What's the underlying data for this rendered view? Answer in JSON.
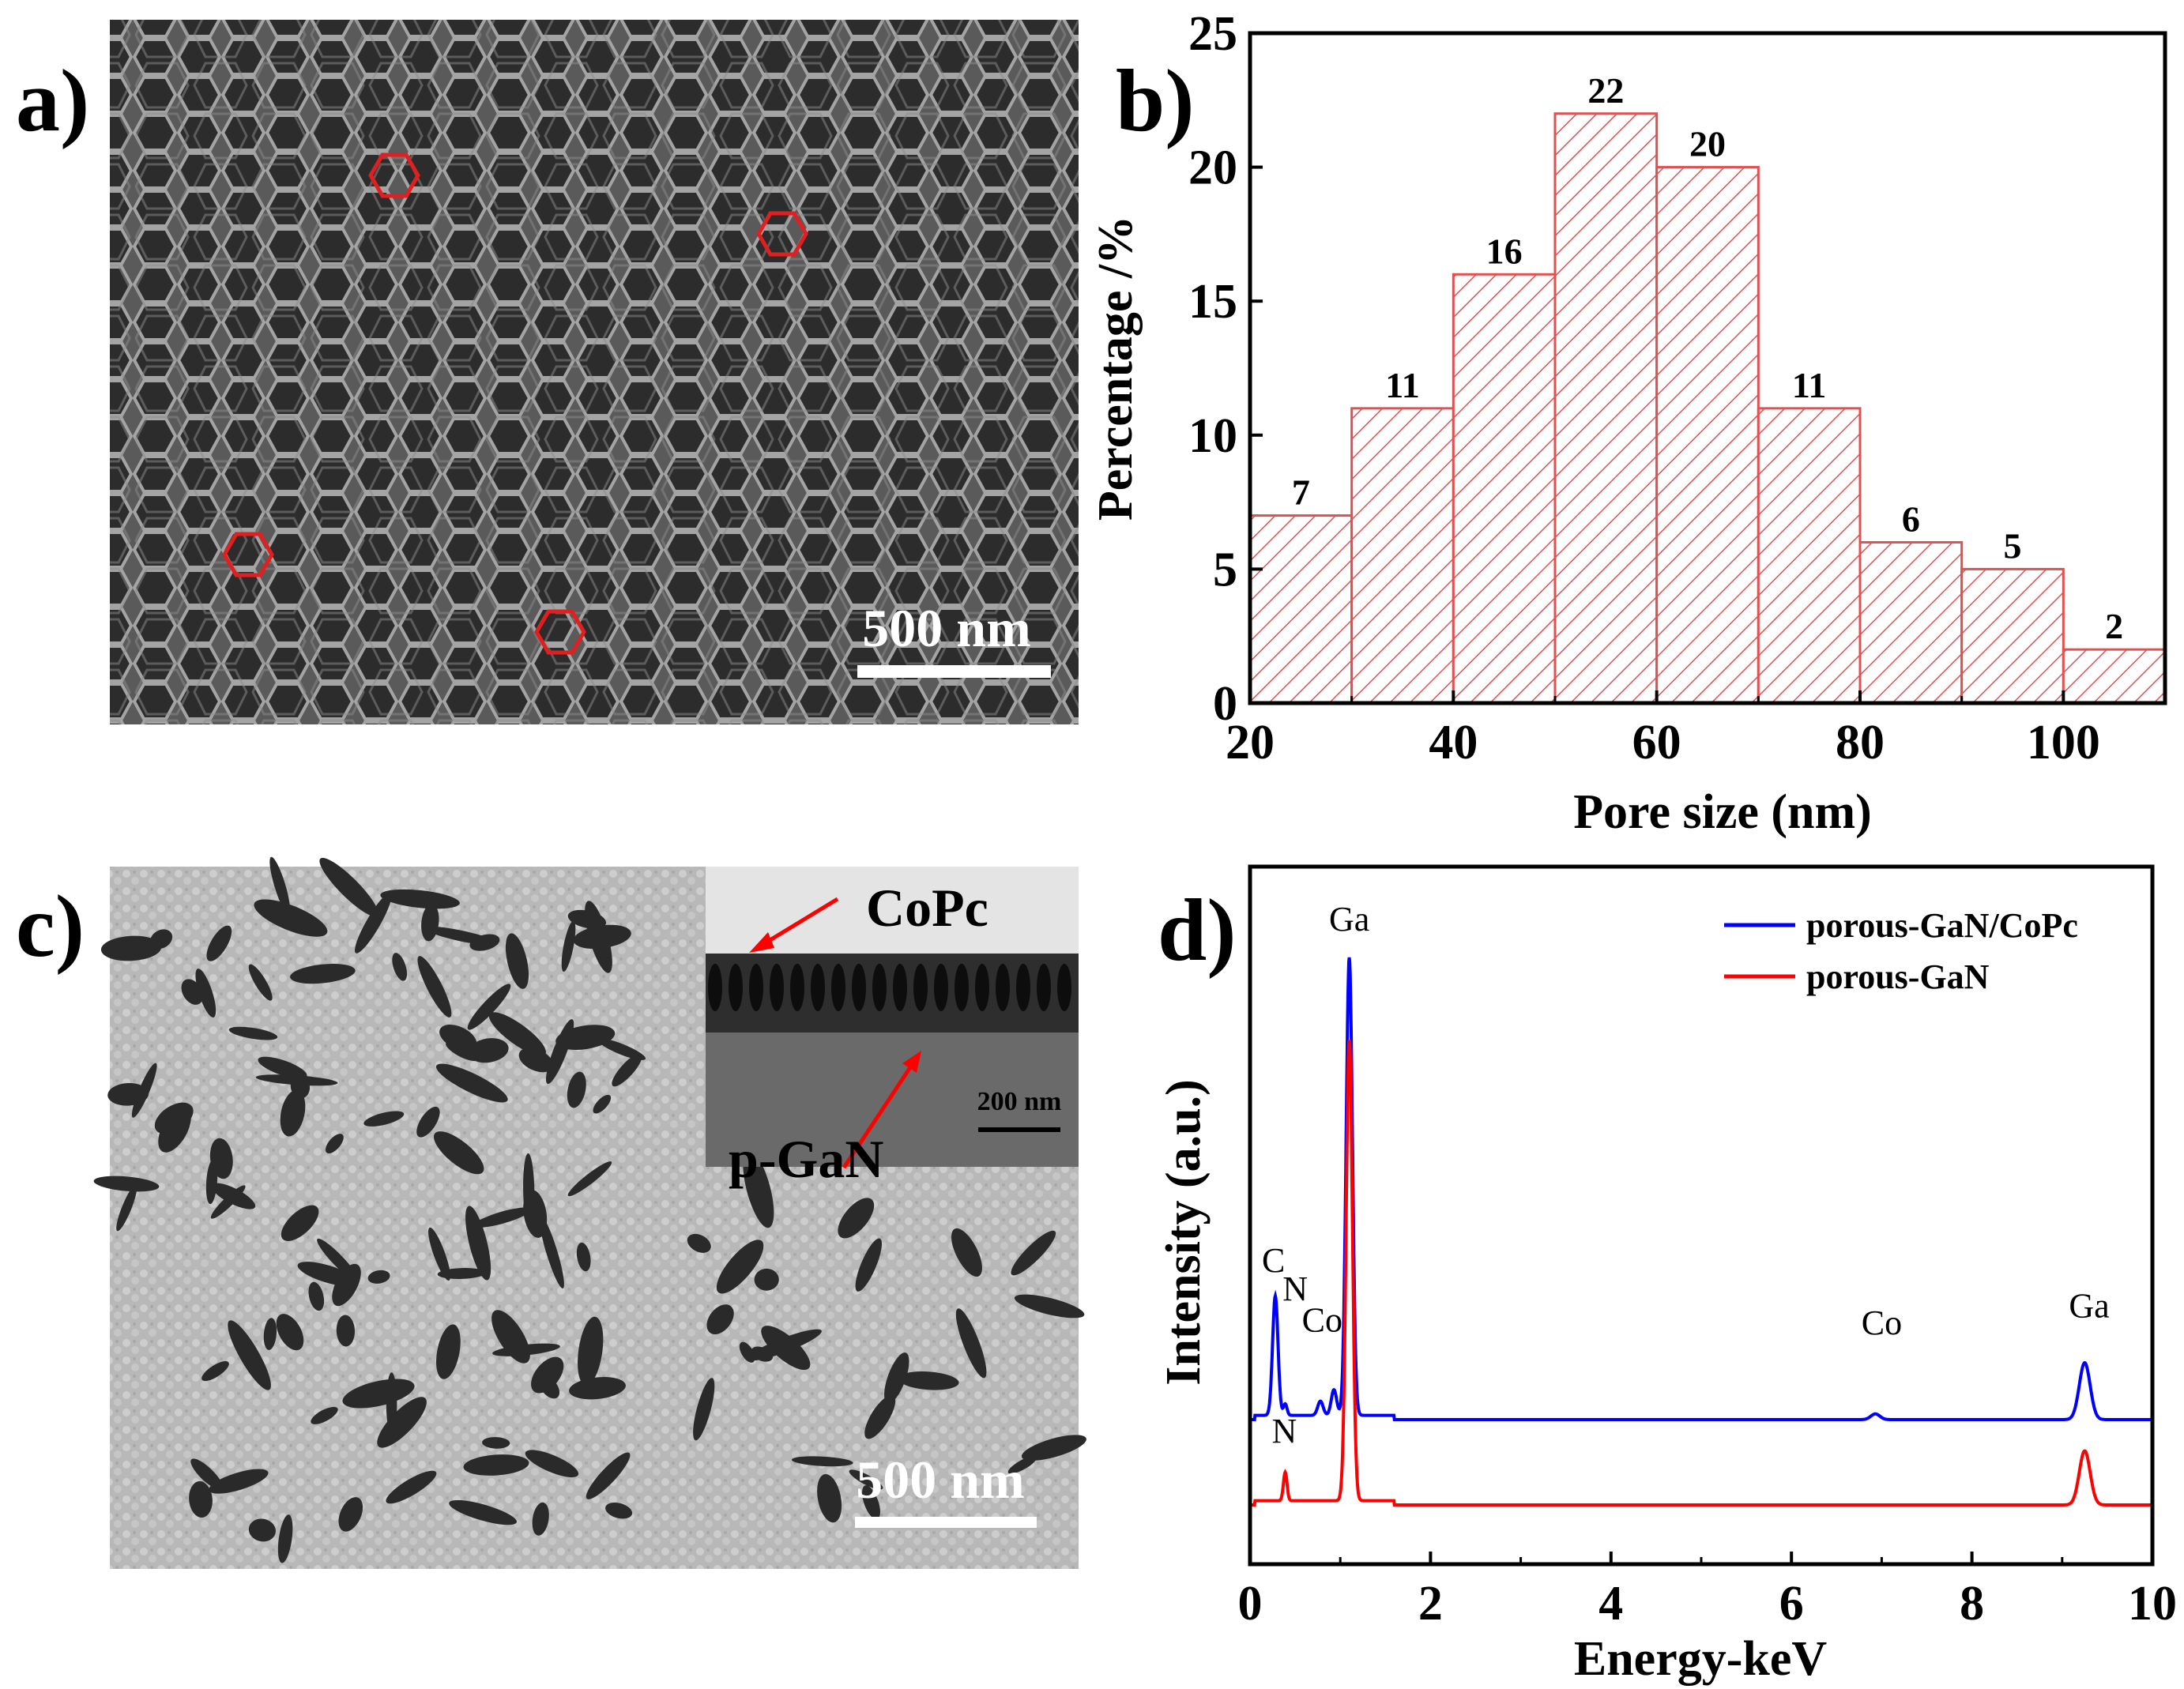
{
  "panels": {
    "a": {
      "label": "a)",
      "scale_bar": "500 nm"
    },
    "b": {
      "label": "b)"
    },
    "c": {
      "label": "c)",
      "scale_bar": "500  nm",
      "inset_scale_bar": "200 nm",
      "inset_labels": {
        "top": "CoPc",
        "bottom": "p-GaN"
      }
    },
    "d": {
      "label": "d)"
    }
  },
  "colors": {
    "bar": "#e05252",
    "blue": "#0000ff",
    "red": "#ff0000",
    "marker": "#e02020"
  },
  "chart_data": [
    {
      "panel": "b",
      "type": "bar",
      "xlabel": "Pore size (nm)",
      "ylabel": "Percentage /%",
      "bins": [
        [
          20,
          30
        ],
        [
          30,
          40
        ],
        [
          40,
          50
        ],
        [
          50,
          60
        ],
        [
          60,
          70
        ],
        [
          70,
          80
        ],
        [
          80,
          90
        ],
        [
          90,
          100
        ],
        [
          100,
          110
        ]
      ],
      "values": [
        7,
        11,
        16,
        22,
        20,
        11,
        6,
        5,
        2
      ],
      "xlim": [
        20,
        110
      ],
      "ylim": [
        0,
        25
      ],
      "xticks": [
        20,
        40,
        60,
        80,
        100
      ],
      "yticks": [
        0,
        5,
        10,
        15,
        20,
        25
      ]
    },
    {
      "panel": "d",
      "type": "line",
      "xlabel": "Energy-keV",
      "ylabel": "Intensity (a.u.)",
      "xlim": [
        0,
        10
      ],
      "xticks": [
        0,
        2,
        4,
        6,
        8,
        10
      ],
      "series": [
        {
          "name": "porous-GaN/CoPc",
          "color": "blue",
          "baseline": 0.3,
          "peaks": [
            {
              "x": 0.28,
              "h": 0.42,
              "w": 0.03
            },
            {
              "x": 0.39,
              "h": 0.04,
              "w": 0.02
            },
            {
              "x": 0.78,
              "h": 0.05,
              "w": 0.03
            },
            {
              "x": 0.93,
              "h": 0.09,
              "w": 0.03
            },
            {
              "x": 1.1,
              "h": 1.61,
              "w": 0.035
            },
            {
              "x": 6.93,
              "h": 0.02,
              "w": 0.05
            },
            {
              "x": 9.25,
              "h": 0.2,
              "w": 0.06
            }
          ]
        },
        {
          "name": "porous-GaN",
          "color": "red",
          "baseline": 0.0,
          "peaks": [
            {
              "x": 0.39,
              "h": 0.1,
              "w": 0.02
            },
            {
              "x": 1.1,
              "h": 1.62,
              "w": 0.035
            },
            {
              "x": 9.25,
              "h": 0.19,
              "w": 0.06
            }
          ]
        }
      ],
      "annotations": [
        {
          "text": "C",
          "x": 0.26,
          "y": 0.82
        },
        {
          "text": "N",
          "x": 0.5,
          "y": 0.72
        },
        {
          "text": "Co",
          "x": 0.8,
          "y": 0.61
        },
        {
          "text": "Ga",
          "x": 1.1,
          "y": 2.02
        },
        {
          "text": "Co",
          "x": 7.0,
          "y": 0.6
        },
        {
          "text": "Ga",
          "x": 9.3,
          "y": 0.66
        },
        {
          "text": "N",
          "x": 0.38,
          "y": 0.22
        }
      ]
    }
  ]
}
